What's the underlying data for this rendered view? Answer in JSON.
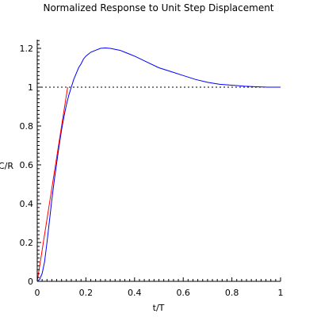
{
  "chart_data": {
    "type": "line",
    "title": "Normalized Response to Unit Step Displacement",
    "xlabel": "t/T",
    "ylabel": "C/R",
    "xlim": [
      0,
      1
    ],
    "ylim": [
      0,
      1.25
    ],
    "x_ticks": [
      "0",
      "0.2",
      "0.4",
      "0.6",
      "0.8",
      "1"
    ],
    "y_ticks": [
      "0",
      "0.2",
      "0.4",
      "0.6",
      "0.8",
      "1",
      "1.2"
    ],
    "x_tick_values": [
      0,
      0.2,
      0.4,
      0.6,
      0.8,
      1
    ],
    "y_tick_values": [
      0,
      0.2,
      0.4,
      0.6,
      0.8,
      1,
      1.2
    ],
    "grid": false,
    "series": [
      {
        "color": "#0000ff",
        "x": [
          0,
          0.01,
          0.02,
          0.03,
          0.04,
          0.05,
          0.06,
          0.07,
          0.08,
          0.09,
          0.1,
          0.11,
          0.12,
          0.13,
          0.14,
          0.15,
          0.16,
          0.17,
          0.18,
          0.19,
          0.2,
          0.22,
          0.24,
          0.26,
          0.28,
          0.3,
          0.32,
          0.34,
          0.36,
          0.38,
          0.4,
          0.45,
          0.5,
          0.55,
          0.6,
          0.65,
          0.7,
          0.75,
          0.8,
          0.85,
          0.9,
          0.95,
          1.0
        ],
        "values": [
          0,
          0.01,
          0.04,
          0.1,
          0.2,
          0.31,
          0.42,
          0.52,
          0.61,
          0.7,
          0.78,
          0.85,
          0.91,
          0.96,
          1.0,
          1.04,
          1.07,
          1.1,
          1.12,
          1.145,
          1.16,
          1.18,
          1.19,
          1.2,
          1.202,
          1.2,
          1.195,
          1.19,
          1.18,
          1.17,
          1.16,
          1.13,
          1.1,
          1.08,
          1.06,
          1.04,
          1.025,
          1.015,
          1.01,
          1.005,
          1.002,
          1.0,
          1.0
        ]
      },
      {
        "color": "#ff0000",
        "x": [
          0,
          0.125
        ],
        "values": [
          0,
          1.0
        ]
      }
    ],
    "reference_line": {
      "y": 1,
      "style": "dotted",
      "color": "#000000"
    }
  }
}
